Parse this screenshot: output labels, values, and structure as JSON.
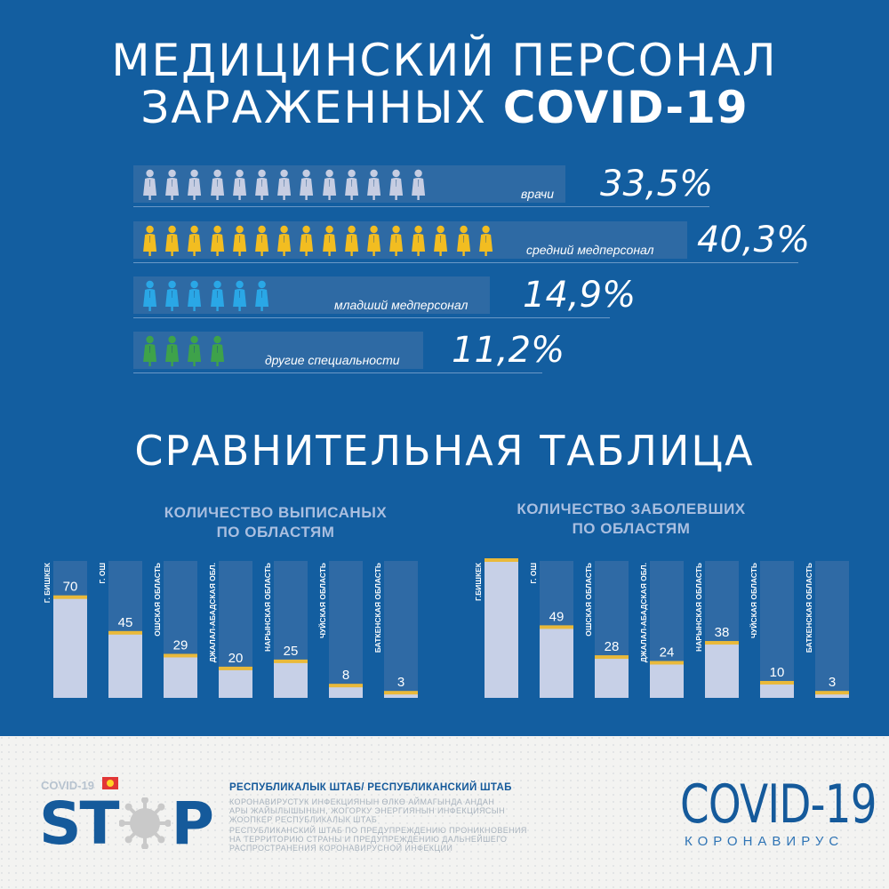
{
  "title": {
    "line1": "МЕДИЦИНСКИЙ ПЕРСОНАЛ",
    "line2_prefix": "ЗАРАЖЕННЫХ ",
    "line2_bold": "COVID-19"
  },
  "colors": {
    "background": "#135ea0",
    "band": "#2e6aa4",
    "bar_fill": "#c7d0e7",
    "bar_track": "#2f6aa5",
    "bar_cap": "#e9b93a",
    "doctors": "#c6cde2",
    "nurses": "#f2bd21",
    "junior": "#2aa7e6",
    "other": "#3ea24a"
  },
  "chart_data": [
    {
      "type": "bar",
      "categories": [
        "врачи",
        "средний медперсонал",
        "младший медперсонал",
        "другие специальности"
      ],
      "values": [
        33.5,
        40.3,
        14.9,
        11.2
      ],
      "value_labels": [
        "33,5%",
        "40,3%",
        "14,9%",
        "11,2%"
      ],
      "icon_counts": [
        13,
        16,
        6,
        4
      ],
      "icon_colors": [
        "#c6cde2",
        "#f2bd21",
        "#2aa7e6",
        "#3ea24a"
      ],
      "title": "",
      "xlabel": "",
      "ylabel": ""
    },
    {
      "type": "bar",
      "title": "КОЛИЧЕСТВО ВЫПИСАНЫХ ПО ОБЛАСТЯМ",
      "title_lines": [
        "КОЛИЧЕСТВО ВЫПИСАНЫХ",
        "ПО ОБЛАСТЯМ"
      ],
      "categories": [
        "Г. БИШКЕК",
        "Г. ОШ",
        "ОШСКАЯ ОБЛАСТЬ",
        "ДЖАЛАЛ-АБАДСКАЯ ОБЛ.",
        "НАРЫНСКАЯ ОБЛАСТЬ",
        "ЧУЙСКАЯ ОБЛАСТЬ",
        "БАТКЕНСКАЯ ОБЛАСТЬ"
      ],
      "values": [
        70,
        45,
        29,
        20,
        25,
        8,
        3
      ],
      "ylim": [
        0,
        96
      ],
      "xlabel": "",
      "ylabel": ""
    },
    {
      "type": "bar",
      "title": "КОЛИЧЕСТВО ЗАБОЛЕВШИХ ПО ОБЛАСТЯМ",
      "title_lines": [
        "КОЛИЧЕСТВО ЗАБОЛЕВШИХ",
        "ПО ОБЛАСТЯМ"
      ],
      "categories": [
        "Г.БИШКЕК",
        "Г. ОШ",
        "ОШСКАЯ ОБЛАСТЬ",
        "ДЖАЛАЛ-АБАДСКАЯ ОБЛ.",
        "НАРЫНСКАЯ ОБЛАСТЬ",
        "ЧУЙСКАЯ ОБЛАСТЬ",
        "БАТКЕНСКАЯ ОБЛАСТЬ"
      ],
      "values": [
        96,
        49,
        28,
        24,
        38,
        10,
        3
      ],
      "ylim": [
        0,
        96
      ],
      "xlabel": "",
      "ylabel": ""
    }
  ],
  "section_title": "СРАВНИТЕЛЬНАЯ ТАБЛИЦА",
  "footer": {
    "covid_small": "COVID-19",
    "stop_left": "ST",
    "stop_right": "P",
    "hq_title": "РЕСПУБЛИКАЛЫК ШТАБ/ РЕСПУБЛИКАНСКИЙ ШТАБ",
    "hq_lines": [
      "КОРОНАВИРУСТУК ИНФЕКЦИЯНЫН ӨЛКӨ АЙМАГЫНДА АНДАН",
      "АРЫ ЖАЙЫЛЫШЫНЫН, ЖОГОРКУ ЭНЕРГИЯНЫН ИНФЕКЦИЯСЫН",
      "ЖООПКЕР РЕСПУБЛИКАЛЫК ШТАБ",
      "РЕСПУБЛИКАНСКИЙ ШТАБ ПО ПРЕДУПРЕЖДЕНИЮ ПРОНИКНОВЕНИЯ",
      "НА ТЕРРИТОРИЮ СТРАНЫ И ПРЕДУПРЕЖДЕНИЮ ДАЛЬНЕЙШЕГО",
      "РАСПРОСТРАНЕНИЯ КОРОНАВИРУСНОЙ ИНФЕКЦИИ"
    ],
    "brand": "COVID-19",
    "brand_sub": "КОРОНАВИРУС"
  }
}
